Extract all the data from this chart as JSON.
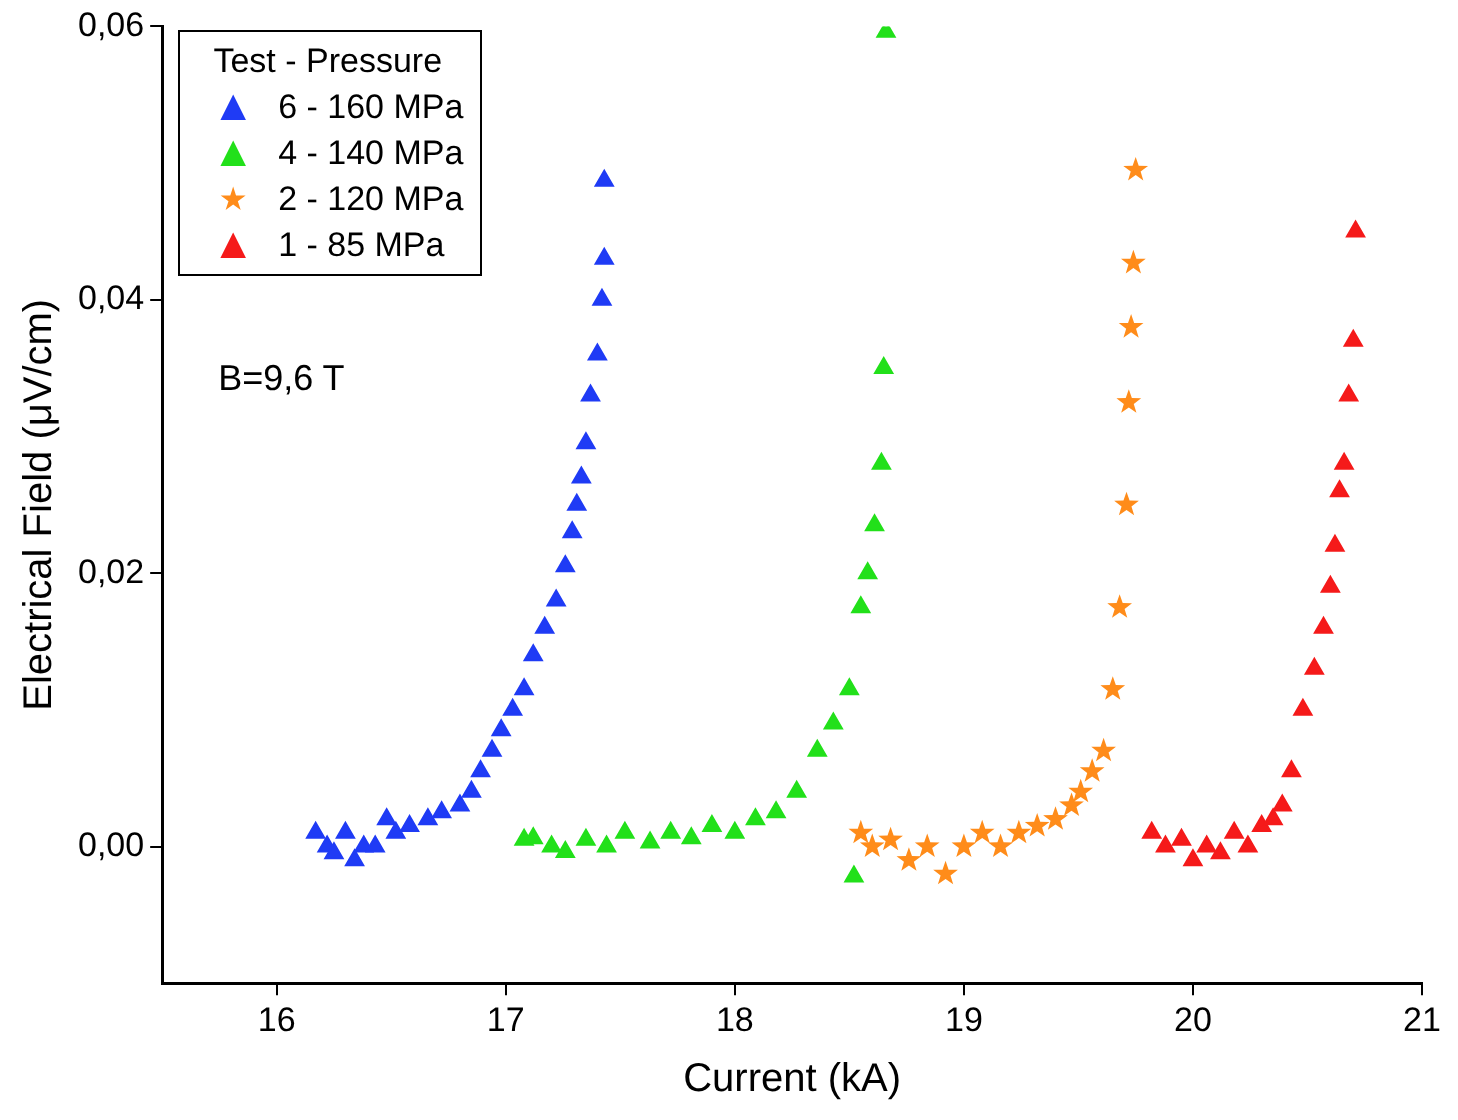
{
  "chart_data": {
    "type": "scatter",
    "xlabel": "Current (kA)",
    "ylabel": "Electrical Field (μV/cm)",
    "legend_title": "Test - Pressure",
    "legend": "top left",
    "grid": false,
    "annotations": [
      "B=9,6 T"
    ],
    "xlim": [
      15.5,
      21
    ],
    "xticks": [
      16,
      17,
      18,
      19,
      20,
      21
    ],
    "ylim": [
      -0.01,
      0.06
    ],
    "yticks": [
      {
        "value": 0,
        "label": "0,00"
      },
      {
        "value": 0.02,
        "label": "0,02"
      },
      {
        "value": 0.04,
        "label": "0,04"
      },
      {
        "value": 0.06,
        "label": "0,06"
      }
    ],
    "series": [
      {
        "name": "6 - 160 MPa",
        "color": "#1f3bf5",
        "marker": "triangle",
        "x": [
          16.17,
          16.22,
          16.25,
          16.3,
          16.34,
          16.38,
          16.43,
          16.48,
          16.52,
          16.58,
          16.66,
          16.72,
          16.8,
          16.85,
          16.89,
          16.94,
          16.98,
          17.03,
          17.08,
          17.12,
          17.17,
          17.22,
          17.26,
          17.29,
          17.31,
          17.33,
          17.35,
          17.37,
          17.4,
          17.42,
          17.43,
          17.43
        ],
        "values": [
          0.001,
          0.0,
          -0.0005,
          0.001,
          -0.001,
          0.0,
          0.0,
          0.002,
          0.001,
          0.0015,
          0.002,
          0.0025,
          0.003,
          0.004,
          0.0055,
          0.007,
          0.0085,
          0.01,
          0.0115,
          0.014,
          0.016,
          0.018,
          0.0205,
          0.023,
          0.025,
          0.027,
          0.0295,
          0.033,
          0.036,
          0.04,
          0.043,
          0.0487
        ]
      },
      {
        "name": "4 - 140 MPa",
        "color": "#22e01a",
        "marker": "triangle",
        "x": [
          17.08,
          17.12,
          17.2,
          17.26,
          17.35,
          17.44,
          17.52,
          17.63,
          17.72,
          17.81,
          17.9,
          18.0,
          18.09,
          18.18,
          18.27,
          18.36,
          18.43,
          18.5,
          18.52,
          18.55,
          18.58,
          18.61,
          18.64,
          18.65,
          18.66
        ],
        "values": [
          0.0005,
          0.0006,
          0.0,
          -0.0004,
          0.0005,
          0.0,
          0.001,
          0.0003,
          0.001,
          0.0006,
          0.0015,
          0.001,
          0.002,
          0.0025,
          0.004,
          0.007,
          0.009,
          0.0115,
          -0.0022,
          0.0175,
          0.02,
          0.0235,
          0.028,
          0.035,
          0.0596
        ]
      },
      {
        "name": "2 - 120 MPa",
        "color": "#ff8c1a",
        "marker": "star",
        "x": [
          18.55,
          18.6,
          18.68,
          18.76,
          18.84,
          18.92,
          19.0,
          19.08,
          19.16,
          19.24,
          19.32,
          19.4,
          19.47,
          19.51,
          19.56,
          19.61,
          19.65,
          19.68,
          19.71,
          19.72,
          19.73,
          19.74,
          19.75
        ],
        "values": [
          0.001,
          0.0,
          0.0005,
          -0.001,
          0.0,
          -0.002,
          0.0,
          0.001,
          0.0,
          0.001,
          0.0015,
          0.002,
          0.003,
          0.004,
          0.0055,
          0.007,
          0.0115,
          0.0175,
          0.025,
          0.0325,
          0.038,
          0.0427,
          0.0495
        ]
      },
      {
        "name": "1 - 85  MPa",
        "color": "#f51a1a",
        "marker": "triangle",
        "x": [
          19.82,
          19.88,
          19.95,
          20.0,
          20.06,
          20.12,
          20.18,
          20.24,
          20.3,
          20.35,
          20.39,
          20.43,
          20.48,
          20.53,
          20.57,
          20.6,
          20.62,
          20.64,
          20.66,
          20.68,
          20.7,
          20.71
        ],
        "values": [
          0.001,
          0.0,
          0.0005,
          -0.001,
          0.0,
          -0.0005,
          0.001,
          0.0,
          0.0015,
          0.002,
          0.003,
          0.0055,
          0.01,
          0.013,
          0.016,
          0.019,
          0.022,
          0.026,
          0.028,
          0.033,
          0.037,
          0.045
        ]
      }
    ]
  }
}
